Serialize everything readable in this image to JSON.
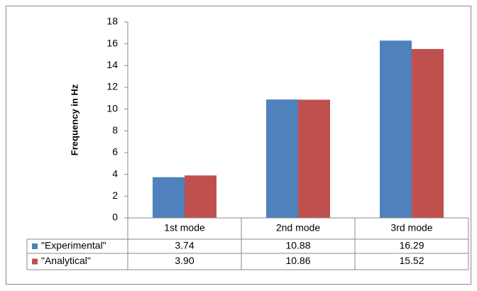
{
  "chart_data": {
    "type": "bar",
    "y_label": "Frequency in Hz",
    "categories": [
      "1st mode",
      "2nd mode",
      "3rd mode"
    ],
    "series": [
      {
        "name": "\"Experimental\"",
        "color": "#4f81bd",
        "values": [
          3.74,
          10.88,
          16.29
        ],
        "value_labels": [
          "3.74",
          "10.88",
          "16.29"
        ]
      },
      {
        "name": "\"Analytical\"",
        "color": "#c0504d",
        "values": [
          3.9,
          10.86,
          15.52
        ],
        "value_labels": [
          "3.90",
          "10.86",
          "15.52"
        ]
      }
    ],
    "ylim": [
      0,
      18
    ],
    "yticks": [
      0,
      2,
      4,
      6,
      8,
      10,
      12,
      14,
      16,
      18
    ],
    "grid": false
  }
}
